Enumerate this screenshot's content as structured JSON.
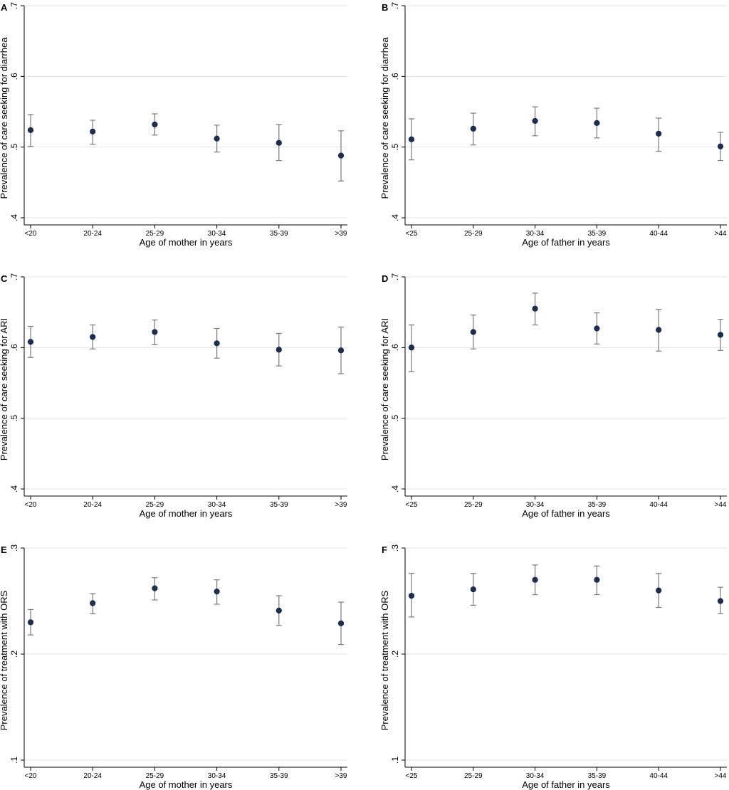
{
  "figure": {
    "description_visible": false
  },
  "chart_data": [
    {
      "type": "scatter",
      "panel_label": "A",
      "ylabel": "Prevalence of care seeking for diarrhea",
      "xlabel": "Age of mother in years",
      "categories": [
        "<20",
        "20-24",
        "25-29",
        "30-34",
        "35-39",
        ">39"
      ],
      "values": [
        0.524,
        0.522,
        0.532,
        0.512,
        0.506,
        0.488
      ],
      "ci_low": [
        0.501,
        0.504,
        0.517,
        0.493,
        0.481,
        0.452
      ],
      "ci_high": [
        0.546,
        0.538,
        0.547,
        0.531,
        0.532,
        0.523
      ],
      "ylim": [
        0.4,
        0.7
      ],
      "yticks": [
        0.4,
        0.5,
        0.6,
        0.7
      ],
      "ytick_labels": [
        ".4",
        ".5",
        ".6",
        ".7"
      ]
    },
    {
      "type": "scatter",
      "panel_label": "B",
      "ylabel": "Prevalence of care seeking for diarrhea",
      "xlabel": "Age of father in years",
      "categories": [
        "<25",
        "25-29",
        "30-34",
        "35-39",
        "40-44",
        ">44"
      ],
      "values": [
        0.511,
        0.526,
        0.537,
        0.534,
        0.519,
        0.501
      ],
      "ci_low": [
        0.482,
        0.503,
        0.516,
        0.513,
        0.494,
        0.481
      ],
      "ci_high": [
        0.54,
        0.548,
        0.557,
        0.555,
        0.541,
        0.521
      ],
      "ylim": [
        0.4,
        0.7
      ],
      "yticks": [
        0.4,
        0.5,
        0.6,
        0.7
      ],
      "ytick_labels": [
        ".4",
        ".5",
        ".6",
        ".7"
      ]
    },
    {
      "type": "scatter",
      "panel_label": "C",
      "ylabel": "Prevalence of care seeking for ARI",
      "xlabel": "Age of mother in years",
      "categories": [
        "<20",
        "20-24",
        "25-29",
        "30-34",
        "35-39",
        ">39"
      ],
      "values": [
        0.608,
        0.615,
        0.622,
        0.606,
        0.597,
        0.596
      ],
      "ci_low": [
        0.586,
        0.598,
        0.604,
        0.585,
        0.574,
        0.563
      ],
      "ci_high": [
        0.63,
        0.632,
        0.639,
        0.627,
        0.62,
        0.629
      ],
      "ylim": [
        0.4,
        0.7
      ],
      "yticks": [
        0.4,
        0.5,
        0.6,
        0.7
      ],
      "ytick_labels": [
        ".4",
        ".5",
        ".6",
        ".7"
      ]
    },
    {
      "type": "scatter",
      "panel_label": "D",
      "ylabel": "Prevalence of care seeking for ARI",
      "xlabel": "Age of father in years",
      "categories": [
        "<25",
        "25-29",
        "30-34",
        "35-39",
        "40-44",
        ">44"
      ],
      "values": [
        0.6,
        0.622,
        0.655,
        0.627,
        0.625,
        0.618
      ],
      "ci_low": [
        0.566,
        0.598,
        0.632,
        0.605,
        0.595,
        0.596
      ],
      "ci_high": [
        0.632,
        0.646,
        0.677,
        0.649,
        0.654,
        0.64
      ],
      "ylim": [
        0.4,
        0.7
      ],
      "yticks": [
        0.4,
        0.5,
        0.6,
        0.7
      ],
      "ytick_labels": [
        ".4",
        ".5",
        ".6",
        ".7"
      ]
    },
    {
      "type": "scatter",
      "panel_label": "E",
      "ylabel": "Prevalence of treatment with ORS",
      "xlabel": "Age of mother in years",
      "categories": [
        "<20",
        "20-24",
        "25-29",
        "30-34",
        "35-39",
        ">39"
      ],
      "values": [
        0.23,
        0.248,
        0.262,
        0.259,
        0.241,
        0.229
      ],
      "ci_low": [
        0.218,
        0.238,
        0.251,
        0.247,
        0.227,
        0.209
      ],
      "ci_high": [
        0.242,
        0.257,
        0.272,
        0.27,
        0.255,
        0.249
      ],
      "ylim": [
        0.1,
        0.3
      ],
      "yticks": [
        0.1,
        0.2,
        0.3
      ],
      "ytick_labels": [
        ".1",
        ".2",
        ".3"
      ]
    },
    {
      "type": "scatter",
      "panel_label": "F",
      "ylabel": "Prevalence of treatment with ORS",
      "xlabel": "Age of father in years",
      "categories": [
        "<25",
        "25-29",
        "30-34",
        "35-39",
        "40-44",
        ">44"
      ],
      "values": [
        0.255,
        0.261,
        0.27,
        0.27,
        0.26,
        0.25
      ],
      "ci_low": [
        0.235,
        0.246,
        0.256,
        0.256,
        0.244,
        0.238
      ],
      "ci_high": [
        0.276,
        0.276,
        0.284,
        0.283,
        0.276,
        0.263
      ],
      "ylim": [
        0.1,
        0.3
      ],
      "yticks": [
        0.1,
        0.2,
        0.3
      ],
      "ytick_labels": [
        ".1",
        ".2",
        ".3"
      ]
    }
  ]
}
